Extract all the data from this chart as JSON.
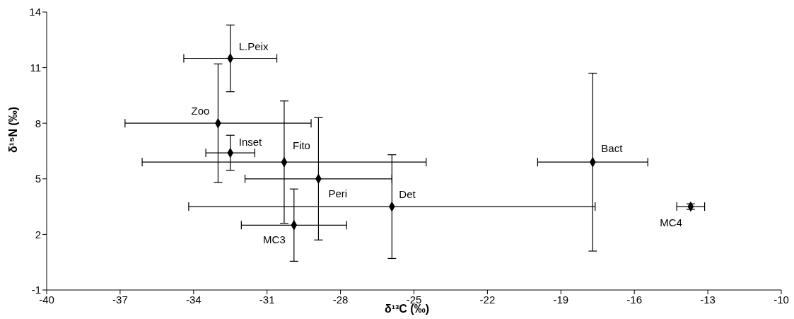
{
  "chart_data": {
    "type": "scatter",
    "xlabel": "δ¹³C (‰)",
    "ylabel": "δ¹⁵N (‰)",
    "xlim": [
      -40,
      -10
    ],
    "xticks": [
      -40,
      -37,
      -34,
      -31,
      -28,
      -25,
      -22,
      -19,
      -16,
      -13,
      -10
    ],
    "ylim": [
      -1,
      14
    ],
    "yticks": [
      -1,
      2,
      5,
      8,
      11,
      14
    ],
    "grid": false,
    "legend": false,
    "marker": "diamond",
    "series": [
      {
        "name": "L.Peix",
        "color": "#000000",
        "x": [
          -32.5
        ],
        "values": [
          11.5
        ],
        "xerrors": [
          1.9
        ],
        "errors": [
          1.8
        ]
      },
      {
        "name": "Zoo",
        "color": "#000000",
        "x": [
          -33.0
        ],
        "values": [
          8.0
        ],
        "xerrors": [
          3.8
        ],
        "errors": [
          3.2
        ]
      },
      {
        "name": "Inset",
        "color": "#000000",
        "x": [
          -32.5
        ],
        "values": [
          6.4
        ],
        "xerrors": [
          1.0
        ],
        "errors": [
          0.95
        ]
      },
      {
        "name": "Fito",
        "color": "#000000",
        "x": [
          -30.3
        ],
        "values": [
          5.9
        ],
        "xerrors": [
          5.8
        ],
        "errors": [
          3.3
        ]
      },
      {
        "name": "Peri",
        "color": "#000000",
        "x": [
          -28.9
        ],
        "values": [
          5.0
        ],
        "xerrors": [
          3.0
        ],
        "errors": [
          3.3
        ]
      },
      {
        "name": "MC3",
        "color": "#000000",
        "x": [
          -29.9
        ],
        "values": [
          2.5
        ],
        "xerrors": [
          2.15
        ],
        "errors": [
          1.95
        ]
      },
      {
        "name": "Det",
        "color": "#000000",
        "x": [
          -25.9
        ],
        "values": [
          3.5
        ],
        "xerrors": [
          8.3
        ],
        "errors": [
          2.8
        ]
      },
      {
        "name": "Bact",
        "color": "#000000",
        "x": [
          -17.7
        ],
        "values": [
          5.9
        ],
        "xerrors": [
          2.25
        ],
        "errors": [
          4.8
        ]
      },
      {
        "name": "MC4",
        "color": "#000000",
        "x": [
          -13.7
        ],
        "values": [
          3.5
        ],
        "xerrors": [
          0.57
        ],
        "errors": [
          0.15
        ]
      }
    ]
  }
}
